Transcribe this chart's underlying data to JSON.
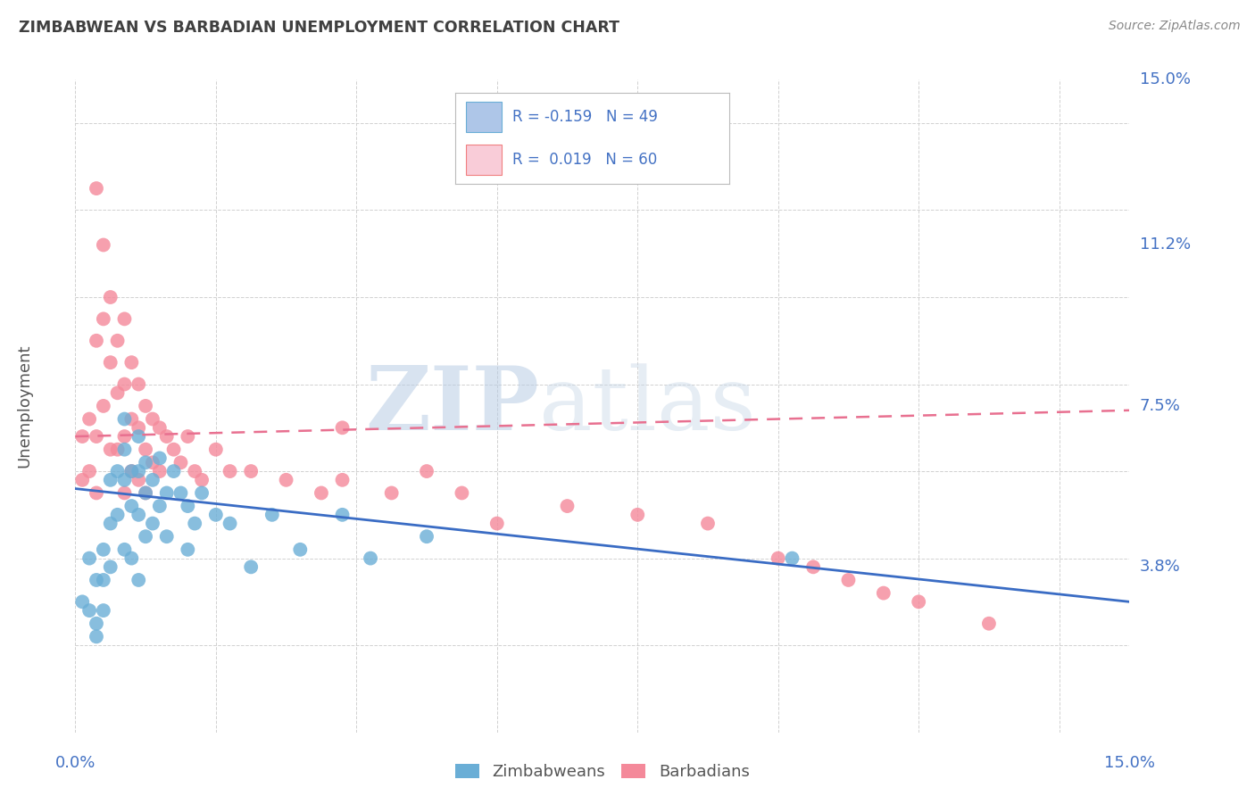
{
  "title": "ZIMBABWEAN VS BARBADIAN UNEMPLOYMENT CORRELATION CHART",
  "source": "Source: ZipAtlas.com",
  "ylabel": "Unemployment",
  "x_min": 0.0,
  "x_max": 0.15,
  "y_min": 0.0,
  "y_max": 0.15,
  "y_tick_positions": [
    0.038,
    0.075,
    0.112,
    0.15
  ],
  "y_tick_labels": [
    "3.8%",
    "7.5%",
    "11.2%",
    "15.0%"
  ],
  "watermark_zip": "ZIP",
  "watermark_atlas": "atlas",
  "legend_entries": [
    {
      "color": "#aec6e8",
      "border": "#6aaed6",
      "R": "-0.159",
      "N": "49"
    },
    {
      "color": "#f9ccd8",
      "border": "#f08080",
      "R": "0.019",
      "N": "60"
    }
  ],
  "zimbabwean_color": "#6aaed6",
  "barbadian_color": "#f4899a",
  "zimbabwean_line_color": "#3a6cc4",
  "barbadian_line_color": "#e87090",
  "background_color": "#ffffff",
  "grid_color": "#cccccc",
  "title_color": "#404040",
  "axis_color": "#4472c4",
  "zim_line_start_y": 0.056,
  "zim_line_end_y": 0.03,
  "bar_line_start_y": 0.068,
  "bar_line_end_y": 0.074,
  "zimbabweans_x": [
    0.001,
    0.002,
    0.002,
    0.003,
    0.003,
    0.003,
    0.004,
    0.004,
    0.004,
    0.005,
    0.005,
    0.005,
    0.006,
    0.006,
    0.007,
    0.007,
    0.007,
    0.007,
    0.008,
    0.008,
    0.008,
    0.009,
    0.009,
    0.009,
    0.009,
    0.01,
    0.01,
    0.01,
    0.011,
    0.011,
    0.012,
    0.012,
    0.013,
    0.013,
    0.014,
    0.015,
    0.016,
    0.016,
    0.017,
    0.018,
    0.02,
    0.022,
    0.025,
    0.028,
    0.032,
    0.038,
    0.042,
    0.05,
    0.102
  ],
  "zimbabweans_y": [
    0.03,
    0.028,
    0.04,
    0.025,
    0.035,
    0.022,
    0.035,
    0.042,
    0.028,
    0.058,
    0.048,
    0.038,
    0.06,
    0.05,
    0.065,
    0.058,
    0.072,
    0.042,
    0.06,
    0.052,
    0.04,
    0.068,
    0.06,
    0.05,
    0.035,
    0.062,
    0.055,
    0.045,
    0.058,
    0.048,
    0.063,
    0.052,
    0.055,
    0.045,
    0.06,
    0.055,
    0.052,
    0.042,
    0.048,
    0.055,
    0.05,
    0.048,
    0.038,
    0.05,
    0.042,
    0.05,
    0.04,
    0.045,
    0.04
  ],
  "barbadians_x": [
    0.001,
    0.001,
    0.002,
    0.002,
    0.003,
    0.003,
    0.003,
    0.003,
    0.004,
    0.004,
    0.004,
    0.005,
    0.005,
    0.005,
    0.006,
    0.006,
    0.006,
    0.007,
    0.007,
    0.007,
    0.007,
    0.008,
    0.008,
    0.008,
    0.009,
    0.009,
    0.009,
    0.01,
    0.01,
    0.01,
    0.011,
    0.011,
    0.012,
    0.012,
    0.013,
    0.014,
    0.015,
    0.016,
    0.017,
    0.018,
    0.02,
    0.022,
    0.025,
    0.03,
    0.035,
    0.038,
    0.038,
    0.045,
    0.05,
    0.055,
    0.06,
    0.07,
    0.08,
    0.09,
    0.1,
    0.105,
    0.11,
    0.115,
    0.12,
    0.13
  ],
  "barbadians_y": [
    0.068,
    0.058,
    0.072,
    0.06,
    0.125,
    0.09,
    0.068,
    0.055,
    0.112,
    0.095,
    0.075,
    0.1,
    0.085,
    0.065,
    0.09,
    0.078,
    0.065,
    0.095,
    0.08,
    0.068,
    0.055,
    0.085,
    0.072,
    0.06,
    0.08,
    0.07,
    0.058,
    0.075,
    0.065,
    0.055,
    0.072,
    0.062,
    0.07,
    0.06,
    0.068,
    0.065,
    0.062,
    0.068,
    0.06,
    0.058,
    0.065,
    0.06,
    0.06,
    0.058,
    0.055,
    0.07,
    0.058,
    0.055,
    0.06,
    0.055,
    0.048,
    0.052,
    0.05,
    0.048,
    0.04,
    0.038,
    0.035,
    0.032,
    0.03,
    0.025
  ]
}
